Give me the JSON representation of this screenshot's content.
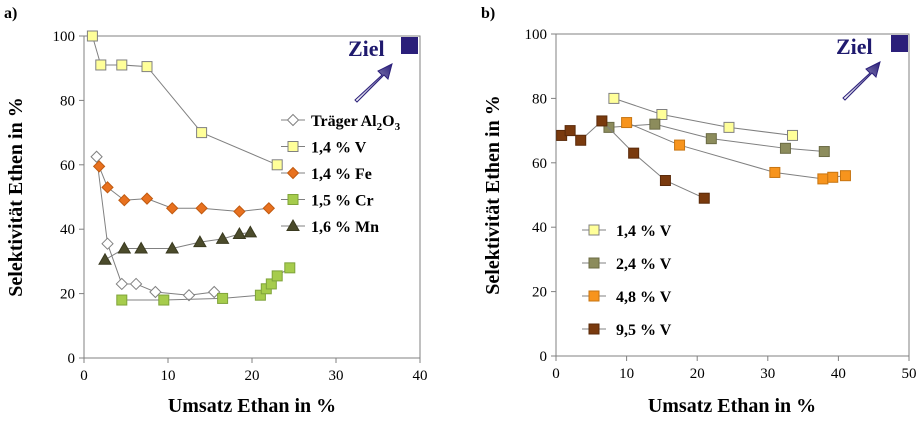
{
  "panels": {
    "a_label": "a)",
    "b_label": "b)",
    "ziel_a": "Ziel",
    "ziel_b": "Ziel"
  },
  "colors": {
    "ziel_box": "#2b1f7a",
    "arrow_dark": "#2b1f7a",
    "arrow_light": "#ffffff"
  },
  "chart_data": [
    {
      "type": "scatter",
      "panel": "a",
      "xlabel": "Umsatz Ethan in %",
      "ylabel": "Selektivität Ethen in %",
      "xlim": [
        0,
        40
      ],
      "ylim": [
        0,
        100
      ],
      "xticks": [
        0,
        10,
        20,
        30,
        40
      ],
      "yticks": [
        0,
        20,
        40,
        60,
        80,
        100
      ],
      "legend_position": "right",
      "series": [
        {
          "name": "Träger Al₂O₃",
          "label_main": "Träger Al",
          "label_sub": "2",
          "label_tail": "O",
          "label_sub2": "3",
          "marker": "diamond",
          "fill": "#ffffff",
          "stroke": "#808080",
          "x": [
            1.5,
            2.8,
            4.5,
            6.2,
            8.5,
            12.5,
            15.5
          ],
          "y": [
            62.5,
            35.5,
            23,
            23,
            20.5,
            19.5,
            20.5
          ]
        },
        {
          "name": "1,4 % V",
          "marker": "square",
          "fill": "#ffff99",
          "stroke": "#808080",
          "x": [
            1.0,
            2.0,
            4.5,
            7.5,
            14.0,
            23.0
          ],
          "y": [
            100,
            91,
            91,
            90.5,
            70,
            60
          ]
        },
        {
          "name": "1,4 % Fe",
          "marker": "diamond",
          "fill": "#e8711f",
          "stroke": "#c05a10",
          "x": [
            1.8,
            2.8,
            4.8,
            7.5,
            10.5,
            14.0,
            18.5,
            22.0
          ],
          "y": [
            59.5,
            53,
            49,
            49.5,
            46.5,
            46.5,
            45.5,
            46.5
          ]
        },
        {
          "name": "1,5 % Cr",
          "marker": "square",
          "fill": "#a6cc4c",
          "stroke": "#7fa33a",
          "x": [
            4.5,
            9.5,
            16.5,
            21.0,
            21.7,
            22.3,
            23.0,
            24.5
          ],
          "y": [
            18,
            18,
            18.5,
            19.5,
            21.5,
            23,
            25.5,
            28
          ]
        },
        {
          "name": "1,6 % Mn",
          "marker": "triangle",
          "fill": "#4b4b2b",
          "stroke": "#3a3a20",
          "x": [
            2.5,
            4.8,
            6.8,
            10.5,
            13.8,
            16.5,
            18.5,
            19.8
          ],
          "y": [
            30.5,
            34,
            34,
            34,
            36,
            37,
            38.5,
            39
          ]
        }
      ]
    },
    {
      "type": "scatter",
      "panel": "b",
      "xlabel": "Umsatz Ethan in %",
      "ylabel": "Selektivität Ethen in %",
      "xlim": [
        0,
        50
      ],
      "ylim": [
        0,
        100
      ],
      "xticks": [
        0,
        10,
        20,
        30,
        40,
        50
      ],
      "yticks": [
        0,
        20,
        40,
        60,
        80,
        100
      ],
      "legend_position": "bottom-left",
      "series": [
        {
          "name": "1,4 % V",
          "marker": "square",
          "fill": "#ffff99",
          "stroke": "#808080",
          "x": [
            8.2,
            15.0,
            24.5,
            33.5
          ],
          "y": [
            80,
            75,
            71,
            68.5
          ]
        },
        {
          "name": "2,4 % V",
          "marker": "square",
          "fill": "#8c8c5c",
          "stroke": "#6b6b45",
          "x": [
            7.5,
            14.0,
            22.0,
            32.5,
            38.0
          ],
          "y": [
            71,
            72,
            67.5,
            64.5,
            63.5
          ]
        },
        {
          "name": "4,8 % V",
          "marker": "square",
          "fill": "#f7941d",
          "stroke": "#c77512",
          "x": [
            10.0,
            17.5,
            31.0,
            37.8,
            39.2,
            41.0
          ],
          "y": [
            72.5,
            65.5,
            57,
            55,
            55.5,
            56
          ]
        },
        {
          "name": "9,5 % V",
          "marker": "square",
          "fill": "#7a3a0e",
          "stroke": "#5a2a0a",
          "x": [
            0.8,
            2.0,
            3.5,
            6.5,
            11.0,
            15.5,
            21.0
          ],
          "y": [
            68.5,
            70,
            67,
            73,
            63,
            54.5,
            49
          ]
        }
      ]
    }
  ]
}
